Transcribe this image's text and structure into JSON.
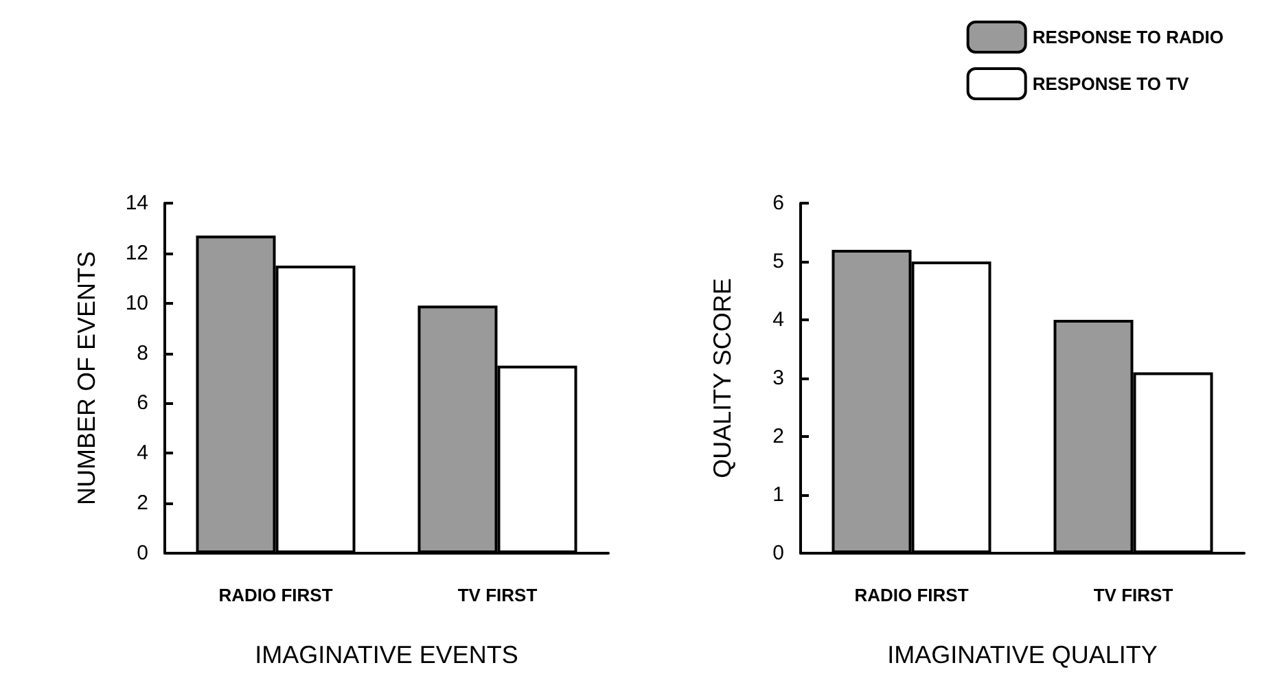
{
  "chart_data": [
    {
      "type": "bar",
      "xlabel": "IMAGINATIVE EVENTS",
      "ylabel": "NUMBER OF EVENTS",
      "categories": [
        "RADIO FIRST",
        "TV FIRST"
      ],
      "series": [
        {
          "color": "#9a9a9a",
          "values": [
            12.7,
            9.9
          ]
        },
        {
          "color": "#ffffff",
          "values": [
            11.5,
            7.5
          ]
        }
      ],
      "ylim": [
        0,
        14
      ],
      "yticks": [
        0,
        2,
        4,
        6,
        8,
        10,
        12,
        14
      ],
      "grid": false,
      "legend": false
    },
    {
      "type": "bar",
      "xlabel": "IMAGINATIVE QUALITY",
      "ylabel": "QUALITY SCORE",
      "categories": [
        "RADIO FIRST",
        "TV FIRST"
      ],
      "series": [
        {
          "name": "RESPONSE TO RADIO",
          "color": "#9a9a9a",
          "values": [
            5.2,
            4.0
          ]
        },
        {
          "name": "RESPONSE TO TV",
          "color": "#ffffff",
          "values": [
            5.0,
            3.1
          ]
        }
      ],
      "ylim": [
        0,
        6
      ],
      "yticks": [
        0,
        1,
        2,
        3,
        4,
        5,
        6
      ],
      "grid": false,
      "legend": "top right"
    }
  ]
}
